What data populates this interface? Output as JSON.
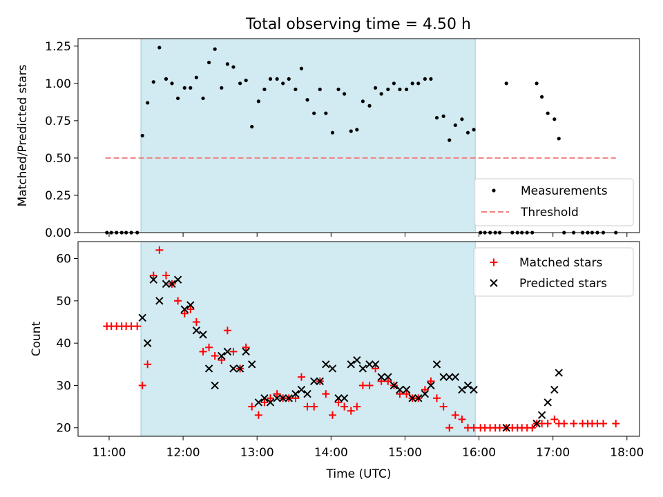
{
  "chart_data": {
    "title": "Total observing time = 4.50 h",
    "xlabel": "Time (UTC)",
    "xlim": [
      10.58,
      18.17
    ],
    "xticks": [
      {
        "v": 11,
        "label": "11:00"
      },
      {
        "v": 12,
        "label": "12:00"
      },
      {
        "v": 13,
        "label": "13:00"
      },
      {
        "v": 14,
        "label": "14:00"
      },
      {
        "v": 15,
        "label": "15:00"
      },
      {
        "v": 16,
        "label": "16:00"
      },
      {
        "v": 17,
        "label": "17:00"
      },
      {
        "v": 18,
        "label": "18:00"
      }
    ],
    "observing_window": [
      11.43,
      15.95
    ],
    "colors": {
      "window": "#add8e6",
      "window_edge": "#9ccadb",
      "measurement": "#000000",
      "threshold": "#f08080",
      "matched": "#ff0000",
      "predicted": "#000000"
    },
    "top": {
      "type": "scatter",
      "ylabel": "Matched/Predicted stars",
      "ylim": [
        0,
        1.3
      ],
      "yticks": [
        {
          "v": 0.0,
          "label": "0.00"
        },
        {
          "v": 0.25,
          "label": "0.25"
        },
        {
          "v": 0.5,
          "label": "0.50"
        },
        {
          "v": 0.75,
          "label": "0.75"
        },
        {
          "v": 1.0,
          "label": "1.00"
        },
        {
          "v": 1.25,
          "label": "1.25"
        }
      ],
      "threshold": {
        "y": 0.5,
        "x": [
          10.95,
          17.85
        ]
      },
      "legend": [
        {
          "label": "Measurements",
          "kind": "dot"
        },
        {
          "label": "Threshold",
          "kind": "dash"
        }
      ],
      "legend_loc": "lower right",
      "series": {
        "name": "Measurements",
        "x": [
          10.97,
          11.03,
          11.1,
          11.17,
          11.23,
          11.3,
          11.38,
          11.45,
          11.52,
          11.6,
          11.68,
          11.77,
          11.85,
          11.93,
          12.02,
          12.1,
          12.18,
          12.27,
          12.35,
          12.43,
          12.52,
          12.6,
          12.68,
          12.77,
          12.85,
          12.93,
          13.02,
          13.1,
          13.18,
          13.27,
          13.35,
          13.43,
          13.52,
          13.6,
          13.68,
          13.77,
          13.85,
          13.93,
          14.02,
          14.1,
          14.18,
          14.27,
          14.35,
          14.43,
          14.52,
          14.6,
          14.68,
          14.77,
          14.85,
          14.93,
          15.02,
          15.1,
          15.18,
          15.27,
          15.35,
          15.43,
          15.52,
          15.6,
          15.68,
          15.77,
          15.85,
          15.93,
          16.02,
          16.08,
          16.15,
          16.22,
          16.28,
          16.37,
          16.45,
          16.52,
          16.58,
          16.65,
          16.72,
          16.78,
          16.85,
          16.93,
          17.02,
          17.08,
          17.15,
          17.28,
          17.4,
          17.47,
          17.53,
          17.6,
          17.68,
          17.85
        ],
        "y": [
          0,
          0,
          0,
          0,
          0,
          0,
          0,
          0.65,
          0.87,
          1.01,
          1.24,
          1.03,
          1.0,
          0.9,
          0.97,
          0.97,
          1.04,
          0.9,
          1.14,
          1.23,
          0.97,
          1.13,
          1.11,
          1.0,
          1.02,
          0.71,
          0.88,
          0.96,
          1.03,
          1.03,
          1.0,
          1.03,
          0.96,
          1.1,
          0.89,
          0.8,
          0.96,
          0.8,
          0.67,
          0.96,
          0.93,
          0.68,
          0.69,
          0.88,
          0.85,
          0.97,
          0.93,
          0.96,
          1.0,
          0.96,
          0.96,
          1.0,
          1.0,
          1.03,
          1.03,
          0.77,
          0.78,
          0.62,
          0.72,
          0.76,
          0.67,
          0.69,
          0,
          0,
          0,
          0,
          0,
          1.0,
          0,
          0,
          0,
          0,
          0,
          1.0,
          0.91,
          0.8,
          0.76,
          0.63,
          0,
          0,
          0,
          0,
          0,
          0,
          0,
          0
        ]
      }
    },
    "bottom": {
      "type": "scatter",
      "ylabel": "Count",
      "ylim": [
        18,
        64
      ],
      "yticks": [
        {
          "v": 20,
          "label": "20"
        },
        {
          "v": 30,
          "label": "30"
        },
        {
          "v": 40,
          "label": "40"
        },
        {
          "v": 50,
          "label": "50"
        },
        {
          "v": 60,
          "label": "60"
        }
      ],
      "legend": [
        {
          "label": "Matched stars",
          "kind": "plus"
        },
        {
          "label": "Predicted stars",
          "kind": "cross"
        }
      ],
      "legend_loc": "upper right",
      "series": [
        {
          "name": "Matched stars",
          "marker": "plus",
          "x": [
            10.97,
            11.03,
            11.1,
            11.17,
            11.23,
            11.3,
            11.38,
            11.45,
            11.52,
            11.6,
            11.68,
            11.77,
            11.85,
            11.93,
            12.02,
            12.1,
            12.18,
            12.27,
            12.35,
            12.43,
            12.52,
            12.6,
            12.68,
            12.77,
            12.85,
            12.93,
            13.02,
            13.1,
            13.18,
            13.27,
            13.35,
            13.43,
            13.52,
            13.6,
            13.68,
            13.77,
            13.85,
            13.93,
            14.02,
            14.1,
            14.18,
            14.27,
            14.35,
            14.43,
            14.52,
            14.6,
            14.68,
            14.77,
            14.85,
            14.93,
            15.02,
            15.1,
            15.18,
            15.27,
            15.35,
            15.43,
            15.52,
            15.6,
            15.68,
            15.77,
            15.85,
            15.93,
            16.02,
            16.08,
            16.15,
            16.22,
            16.28,
            16.37,
            16.45,
            16.52,
            16.58,
            16.65,
            16.72,
            16.78,
            16.85,
            16.93,
            17.02,
            17.08,
            17.15,
            17.28,
            17.4,
            17.47,
            17.53,
            17.6,
            17.68,
            17.85
          ],
          "y": [
            44,
            44,
            44,
            44,
            44,
            44,
            44,
            30,
            35,
            56,
            62,
            56,
            54,
            50,
            47,
            48,
            45,
            38,
            39,
            37,
            36,
            43,
            38,
            34,
            39,
            25,
            23,
            26,
            27,
            28,
            27,
            27,
            27,
            32,
            25,
            25,
            31,
            28,
            23,
            26,
            25,
            24,
            25,
            30,
            30,
            34,
            31,
            31,
            30,
            28,
            28,
            27,
            27,
            29,
            31,
            27,
            25,
            20,
            23,
            22,
            20,
            20,
            20,
            20,
            20,
            20,
            20,
            20,
            20,
            20,
            20,
            20,
            20,
            21,
            21,
            21,
            22,
            21,
            21,
            21,
            21,
            21,
            21,
            21,
            21,
            21
          ]
        },
        {
          "name": "Predicted stars",
          "marker": "cross",
          "x": [
            11.45,
            11.52,
            11.6,
            11.68,
            11.77,
            11.85,
            11.93,
            12.02,
            12.1,
            12.18,
            12.27,
            12.35,
            12.43,
            12.52,
            12.6,
            12.68,
            12.77,
            12.85,
            12.93,
            13.02,
            13.1,
            13.18,
            13.27,
            13.35,
            13.43,
            13.52,
            13.6,
            13.68,
            13.77,
            13.85,
            13.93,
            14.02,
            14.1,
            14.18,
            14.27,
            14.35,
            14.43,
            14.52,
            14.6,
            14.68,
            14.77,
            14.85,
            14.93,
            15.02,
            15.1,
            15.18,
            15.27,
            15.35,
            15.43,
            15.52,
            15.6,
            15.68,
            15.77,
            15.85,
            15.93,
            16.37,
            16.78,
            16.85,
            16.93,
            17.02,
            17.08
          ],
          "y": [
            46,
            40,
            55,
            50,
            54,
            54,
            55,
            48,
            49,
            43,
            42,
            34,
            30,
            37,
            38,
            34,
            34,
            38,
            35,
            26,
            27,
            26,
            27,
            27,
            27,
            28,
            29,
            28,
            31,
            31,
            35,
            34,
            27,
            27,
            35,
            36,
            34,
            35,
            35,
            32,
            32,
            30,
            29,
            29,
            27,
            27,
            28,
            30,
            35,
            32,
            32,
            32,
            29,
            30,
            29,
            20,
            21,
            23,
            26,
            29,
            33
          ]
        }
      ]
    }
  }
}
